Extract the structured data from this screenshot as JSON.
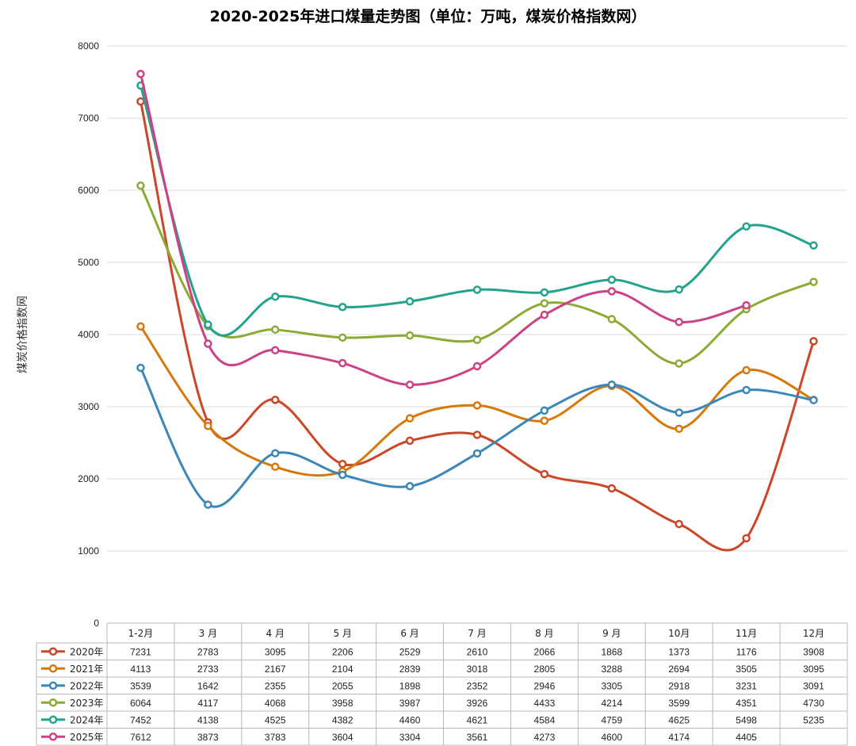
{
  "chart_data": {
    "type": "line",
    "title": "2020-2025年进口煤量走势图（单位：万吨，煤炭价格指数网）",
    "ylabel": "煤炭价格指数网",
    "xlabel": "",
    "ylim": [
      0,
      8000
    ],
    "yticks": [
      0,
      1000,
      2000,
      3000,
      4000,
      5000,
      6000,
      7000,
      8000
    ],
    "grid": true,
    "legend": "table-bottom",
    "categories": [
      "1-2月",
      "3 月",
      "4 月",
      "5 月",
      "6 月",
      "7 月",
      "8 月",
      "9 月",
      "10月",
      "11月",
      "12月"
    ],
    "series": [
      {
        "name": "2020年",
        "color": "#cc4628",
        "values": [
          7231,
          2783,
          3095,
          2206,
          2529,
          2610,
          2066,
          1868,
          1373,
          1176,
          3908
        ]
      },
      {
        "name": "2021年",
        "color": "#d7780a",
        "values": [
          4113,
          2733,
          2167,
          2104,
          2839,
          3018,
          2805,
          3288,
          2694,
          3505,
          3095
        ]
      },
      {
        "name": "2022年",
        "color": "#3a87b8",
        "values": [
          3539,
          1642,
          2355,
          2055,
          1898,
          2352,
          2946,
          3305,
          2918,
          3231,
          3091
        ]
      },
      {
        "name": "2023年",
        "color": "#8cab34",
        "values": [
          6064,
          4117,
          4068,
          3958,
          3987,
          3926,
          4433,
          4214,
          3599,
          4351,
          4730
        ]
      },
      {
        "name": "2024年",
        "color": "#22a38c",
        "values": [
          7452,
          4138,
          4525,
          4382,
          4460,
          4621,
          4584,
          4759,
          4625,
          5498,
          5235
        ]
      },
      {
        "name": "2025年",
        "color": "#cc4285",
        "values": [
          7612,
          3873,
          3783,
          3604,
          3304,
          3561,
          4273,
          4600,
          4174,
          4405,
          null
        ]
      }
    ]
  }
}
